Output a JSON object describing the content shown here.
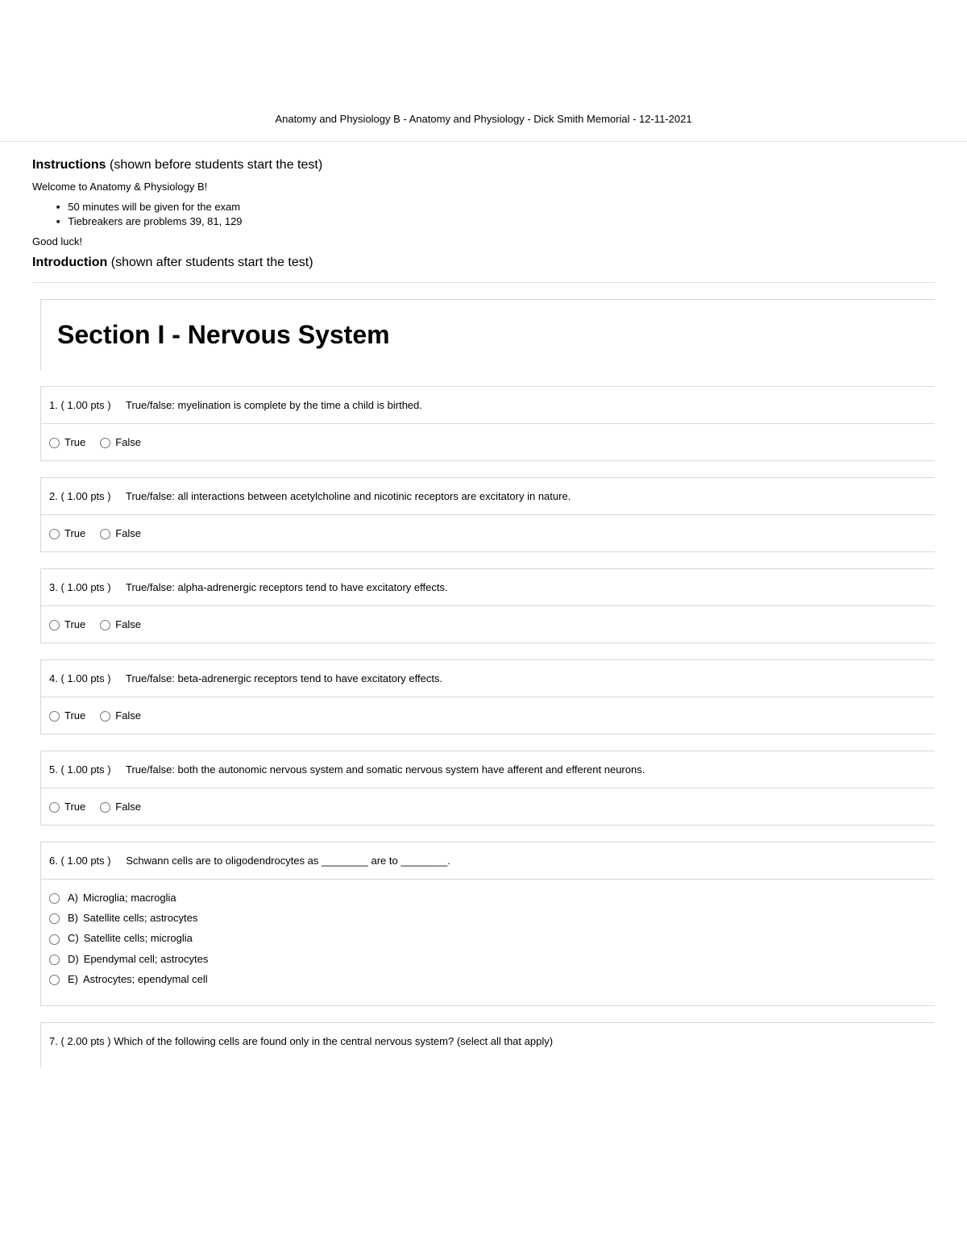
{
  "header": {
    "title": "Anatomy and Physiology B - Anatomy and Physiology - Dick Smith Memorial - 12-11-2021"
  },
  "instructions": {
    "label": "Instructions",
    "sublabel": "(shown before students start the test)",
    "welcome": "Welcome to Anatomy & Physiology B!",
    "bullets": [
      "50 minutes will be given for the exam",
      "Tiebreakers are problems 39, 81, 129"
    ],
    "goodluck": "Good luck!"
  },
  "introduction": {
    "label": "Introduction",
    "sublabel": "(shown after students start the test)"
  },
  "section": {
    "title": "Section I - Nervous System"
  },
  "tf_labels": {
    "true": "True",
    "false": "False"
  },
  "questions": [
    {
      "number": "1.",
      "pts": "( 1.00 pts )",
      "text": "True/false: myelination is complete by the time a child is birthed.",
      "type": "tf"
    },
    {
      "number": "2.",
      "pts": "( 1.00 pts )",
      "text": "True/false: all interactions between acetylcholine and nicotinic receptors are excitatory in nature.",
      "type": "tf"
    },
    {
      "number": "3.",
      "pts": "( 1.00 pts )",
      "text": "True/false: alpha-adrenergic receptors tend to have excitatory effects.",
      "type": "tf"
    },
    {
      "number": "4.",
      "pts": "( 1.00 pts )",
      "text": "True/false: beta-adrenergic receptors tend to have excitatory effects.",
      "type": "tf"
    },
    {
      "number": "5.",
      "pts": "( 1.00 pts )",
      "text": "True/false: both the autonomic nervous system and somatic nervous system have afferent and efferent neurons.",
      "type": "tf"
    },
    {
      "number": "6.",
      "pts": "( 1.00 pts )",
      "text": "Schwann cells are to oligodendrocytes as ________ are to ________.",
      "type": "mc",
      "options": [
        {
          "letter": "A)",
          "text": "Microglia; macroglia"
        },
        {
          "letter": "B)",
          "text": "Satellite cells; astrocytes"
        },
        {
          "letter": "C)",
          "text": "Satellite cells; microglia"
        },
        {
          "letter": "D)",
          "text": "Ependymal cell; astrocytes"
        },
        {
          "letter": "E)",
          "text": "Astrocytes; ependymal cell"
        }
      ]
    },
    {
      "number": "7.",
      "pts": "( 2.00 pts )",
      "text": "Which of the following cells are found only in the central nervous system? (select all that apply)",
      "type": "open"
    }
  ]
}
